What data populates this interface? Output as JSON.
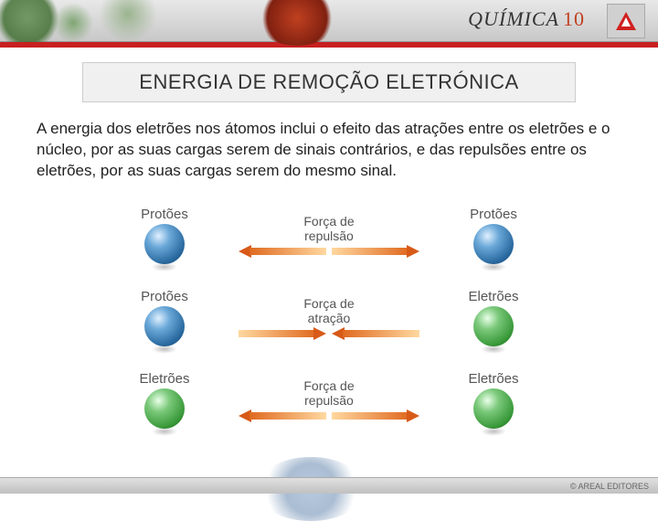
{
  "header": {
    "title_text": "QUÍMICA",
    "title_number": "10",
    "title_color": "#333333",
    "number_color": "#c04020"
  },
  "page_title": "ENERGIA DE REMOÇÃO ELETRÓNICA",
  "body_text": "A energia dos eletrões nos átomos inclui o efeito das atrações entre os eletrões e o núcleo, por as suas cargas serem de sinais contrários, e das repulsões entre os eletrões, por as suas cargas serem do mesmo sinal.",
  "diagram": {
    "rows": [
      {
        "left_label": "Protões",
        "left_color": "blue",
        "right_label": "Protões",
        "right_color": "blue",
        "force_label": "Força de\nrepulsão",
        "direction": "repulsion"
      },
      {
        "left_label": "Protões",
        "left_color": "blue",
        "right_label": "Eletrões",
        "right_color": "green",
        "force_label": "Força de\natração",
        "direction": "attraction"
      },
      {
        "left_label": "Eletrões",
        "left_color": "green",
        "right_label": "Eletrões",
        "right_color": "green",
        "force_label": "Força de\nrepulsão",
        "direction": "repulsion"
      }
    ],
    "colors": {
      "arrow_dark": "#d85a18",
      "arrow_light": "#ffd8a0",
      "proton": "#2a6aa0",
      "electron": "#3a9a3a",
      "label_color": "#555555"
    }
  },
  "footer_text": "© AREAL EDITORES"
}
